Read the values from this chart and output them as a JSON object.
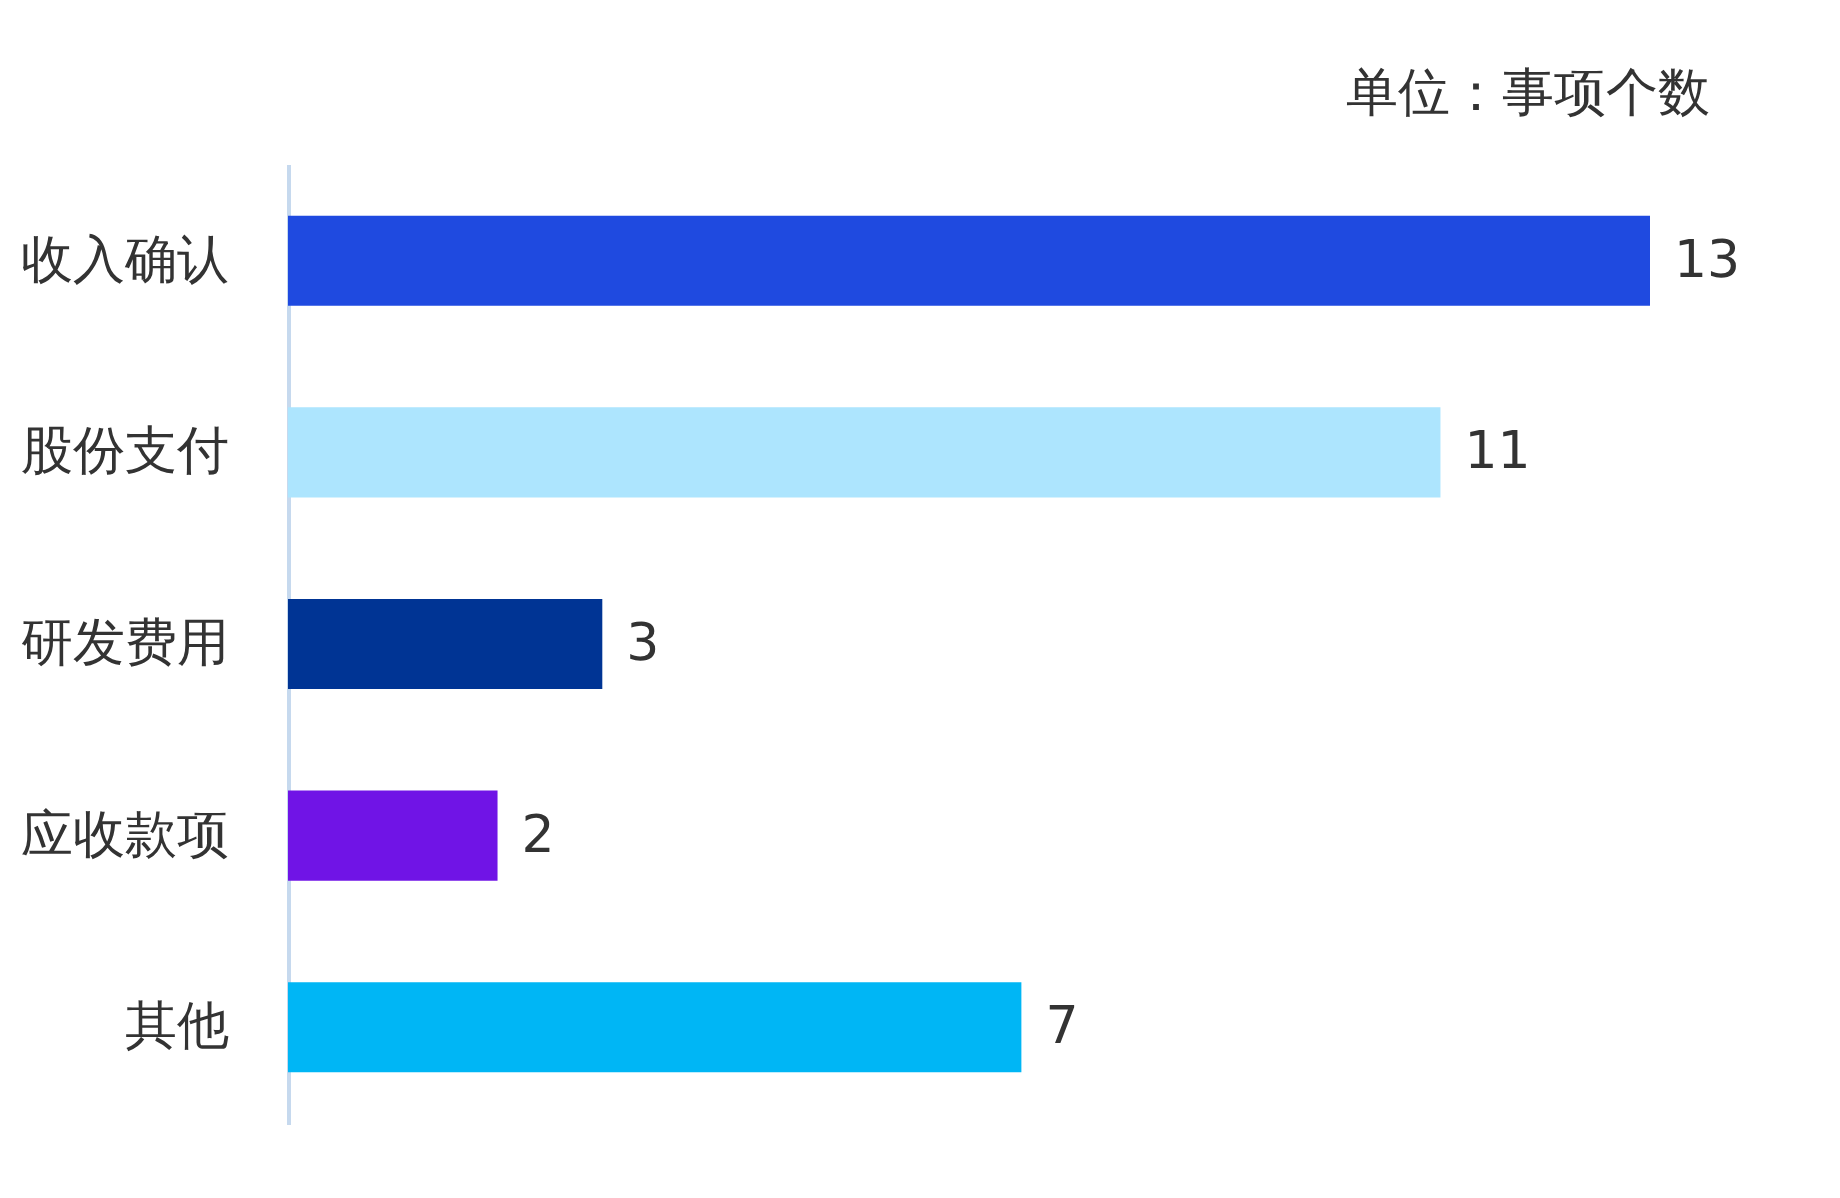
{
  "chart_data": {
    "type": "bar",
    "orientation": "horizontal",
    "annotations": [
      "单位：事项个数"
    ],
    "categories": [
      "收入确认",
      "股份支付",
      "研发费用",
      "应收款项",
      "其他"
    ],
    "values": [
      13,
      11,
      3,
      2,
      7
    ],
    "colors": [
      "#1f4ae0",
      "#ade5fe",
      "#003494",
      "#7014e6",
      "#00b6f5"
    ],
    "data_labels": true
  }
}
